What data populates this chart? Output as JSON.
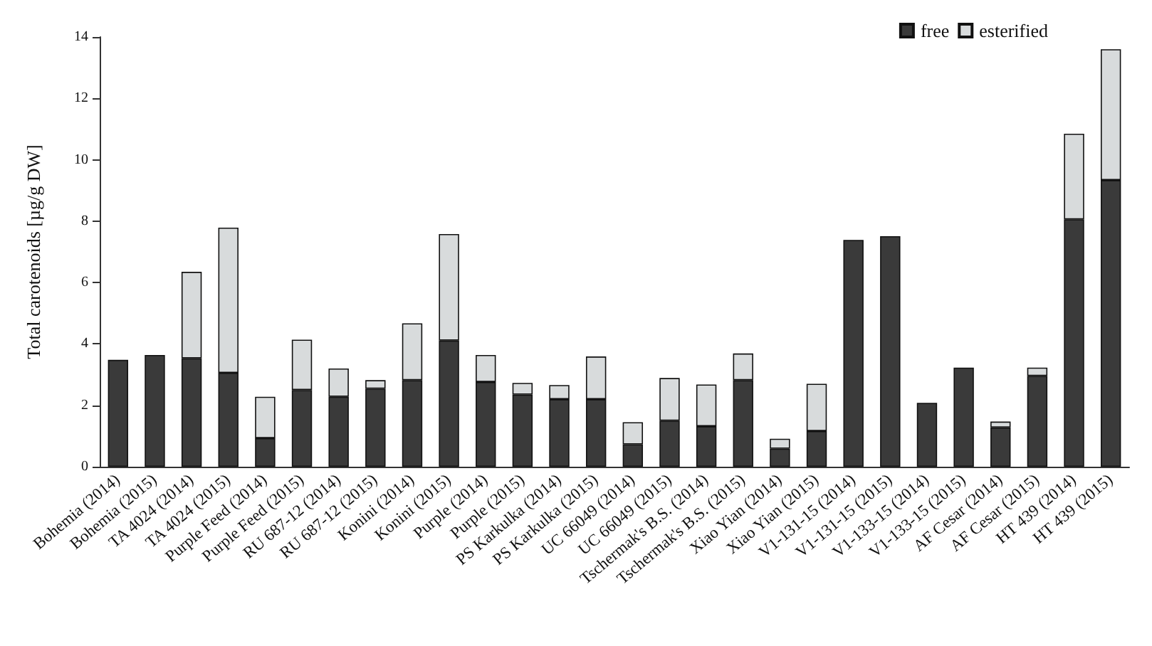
{
  "chart_data": {
    "type": "bar",
    "ylabel": "Total carotenoids [µg/g DW]",
    "categories": [
      "Bohemia (2014)",
      "Bohemia (2015)",
      "TA 4024 (2014)",
      "TA 4024 (2015)",
      "Purple Feed (2014)",
      "Purple Feed (2015)",
      "RU 687-12 (2014)",
      "RU 687-12 (2015)",
      "Konini (2014)",
      "Konini (2015)",
      "Purple (2014)",
      "Purple (2015)",
      "PS Karkulka (2014)",
      "PS Karkulka (2015)",
      "UC 66049 (2014)",
      "UC 66049 (2015)",
      "Tschermak's B.S. (2014)",
      "Tschermak's B.S. (2015)",
      "Xiao Yian (2014)",
      "Xiao Yian (2015)",
      "V1-131-15 (2014)",
      "V1-131-15 (2015)",
      "V1-133-15 (2014)",
      "V1-133-15 (2015)",
      "AF Cesar (2014)",
      "AF Cesar (2015)",
      "HT 439 (2014)",
      "HT 439 (2015)"
    ],
    "series": [
      {
        "name": "free",
        "color": "#3a3a3a",
        "values": [
          3.48,
          3.64,
          3.53,
          3.06,
          0.93,
          2.5,
          2.28,
          2.54,
          2.82,
          4.11,
          2.76,
          2.35,
          2.2,
          2.2,
          0.73,
          1.5,
          1.32,
          2.82,
          0.59,
          1.16,
          7.39,
          7.51,
          2.08,
          3.23,
          1.28,
          2.96,
          8.06,
          9.34
        ]
      },
      {
        "name": "esterified",
        "color": "#d8dbdc",
        "values": [
          0,
          0,
          2.82,
          4.73,
          1.35,
          1.64,
          0.92,
          0.28,
          1.85,
          3.47,
          0.88,
          0.38,
          0.46,
          1.39,
          0.72,
          1.39,
          1.36,
          0.87,
          0.32,
          1.54,
          0,
          0,
          0,
          0,
          0.19,
          0.27,
          2.79,
          4.26
        ]
      }
    ],
    "stacked": true,
    "ylim": [
      0,
      14
    ],
    "yticks": [
      0,
      2,
      4,
      6,
      8,
      10,
      12,
      14
    ],
    "grid": false,
    "legend": "top right"
  }
}
